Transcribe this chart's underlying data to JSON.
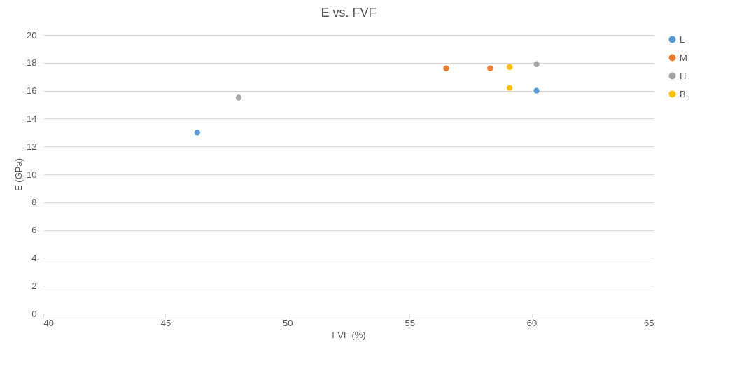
{
  "chart_data": {
    "type": "scatter",
    "title": "E vs. FVF",
    "xlabel": "FVF (%)",
    "ylabel": "E (GPa)",
    "xlim": [
      40,
      65
    ],
    "xticks": [
      40,
      45,
      50,
      55,
      60,
      65
    ],
    "ylim": [
      0,
      20
    ],
    "yticks": [
      0,
      2,
      4,
      6,
      8,
      10,
      12,
      14,
      16,
      18,
      20
    ],
    "grid": "y",
    "legend": "right",
    "marker": "circle",
    "series": [
      {
        "name": "L",
        "color": "#5b9bd5",
        "x": [
          46.3,
          60.2
        ],
        "values": [
          13.0,
          16.0
        ]
      },
      {
        "name": "M",
        "color": "#ed7d31",
        "x": [
          56.5,
          58.3
        ],
        "values": [
          17.6,
          17.6
        ]
      },
      {
        "name": "H",
        "color": "#a5a5a5",
        "x": [
          48.0,
          60.2
        ],
        "values": [
          15.5,
          17.9
        ]
      },
      {
        "name": "B",
        "color": "#ffc000",
        "x": [
          59.1,
          59.1
        ],
        "values": [
          17.7,
          16.2
        ]
      }
    ]
  }
}
